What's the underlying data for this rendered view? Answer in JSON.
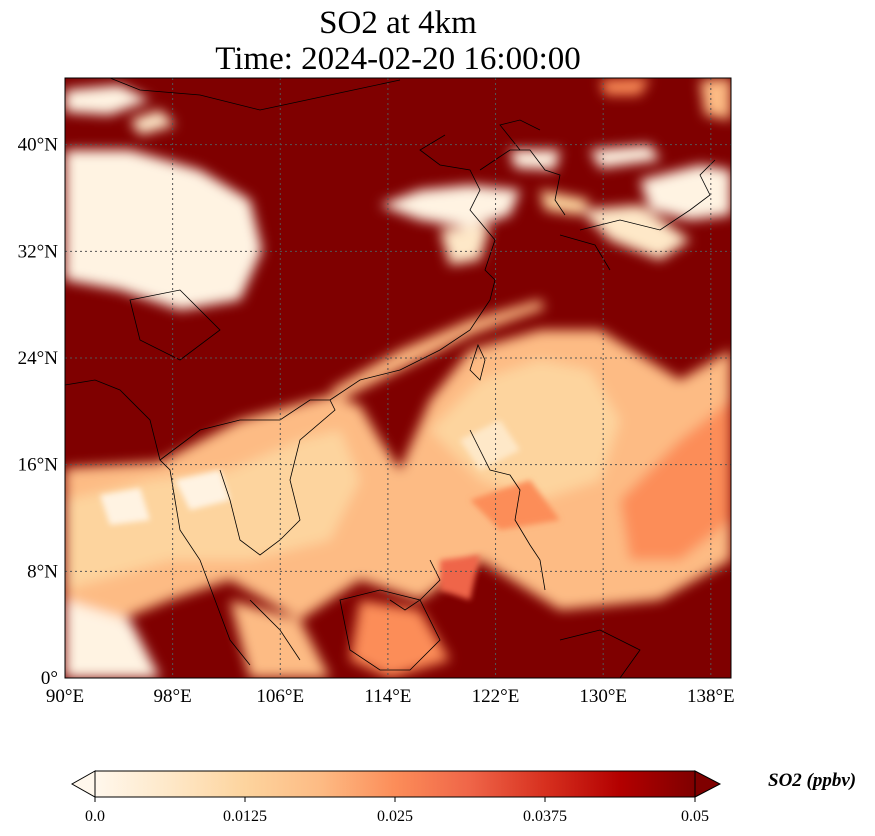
{
  "title": "SO2 at 4km",
  "subtitle": "Time: 2024-02-20 16:00:00",
  "lon_ticks": [
    "90°E",
    "98°E",
    "106°E",
    "114°E",
    "122°E",
    "130°E",
    "138°E"
  ],
  "lat_ticks": [
    "0°",
    "8°N",
    "16°N",
    "24°N",
    "32°N",
    "40°N"
  ],
  "extent": {
    "lon_min": 90,
    "lon_max": 139.5,
    "lat_min": 0,
    "lat_max": 45
  },
  "colorbar": {
    "label": "SO2 (ppbv)",
    "ticks": [
      "0.0",
      "0.0125",
      "0.025",
      "0.0375",
      "0.05"
    ],
    "min": 0,
    "max": 0.05,
    "colormap": [
      "#fff7ec",
      "#fee8c8",
      "#fdd49e",
      "#fdbb84",
      "#fc8d59",
      "#ef6548",
      "#d7301f",
      "#b30000",
      "#7f0000"
    ]
  },
  "gridlines": true
}
